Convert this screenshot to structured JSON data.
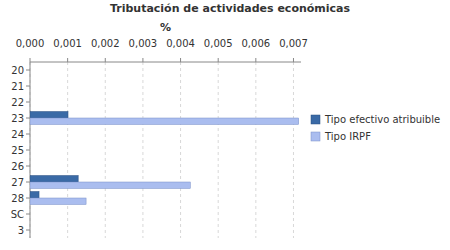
{
  "chart_data": {
    "type": "bar",
    "orientation": "horizontal",
    "title": "Tributación de actividades económicas",
    "x_label": "%",
    "categories": [
      "20",
      "21",
      "22",
      "23",
      "24",
      "25",
      "26",
      "27",
      "28",
      "SC",
      "3"
    ],
    "series": [
      {
        "name": "Tipo efectivo atribuible",
        "color": "#3a6aa6",
        "values": [
          0,
          0,
          0,
          0.00101,
          0,
          0,
          0,
          0.00128,
          0.00024,
          0,
          0
        ]
      },
      {
        "name": "Tipo IRPF",
        "color": "#aabdef",
        "values": [
          0,
          0,
          0,
          0.00714,
          0,
          0,
          0,
          0.00426,
          0.00149,
          0,
          0
        ]
      }
    ],
    "xlim": [
      0,
      0.0072
    ],
    "xticks": [
      {
        "value": 0,
        "label": "0,000"
      },
      {
        "value": 0.001,
        "label": "0,001"
      },
      {
        "value": 0.002,
        "label": "0,002"
      },
      {
        "value": 0.003,
        "label": "0,003"
      },
      {
        "value": 0.004,
        "label": "0,004"
      },
      {
        "value": 0.005,
        "label": "0,005"
      },
      {
        "value": 0.006,
        "label": "0,006"
      },
      {
        "value": 0.007,
        "label": "0,007"
      }
    ],
    "grid": true,
    "legend": "right"
  }
}
